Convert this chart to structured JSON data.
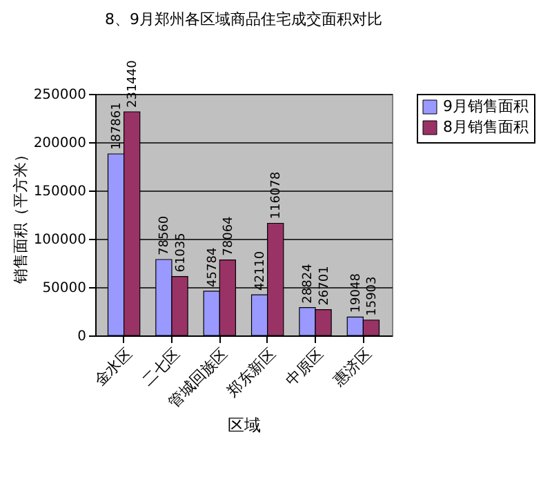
{
  "chart_data": {
    "type": "bar",
    "title": "8、9月郑州各区域商品住宅成交面积对比",
    "xlabel": "区域",
    "ylabel": "销售面积（平方米）",
    "categories": [
      "金水区",
      "二七区",
      "管城回族区",
      "郑东新区",
      "中原区",
      "惠济区"
    ],
    "series": [
      {
        "name": "9月销售面积",
        "color": "#9999ff",
        "values": [
          187861,
          78560,
          45784,
          42110,
          28824,
          19048
        ]
      },
      {
        "name": "8月销售面积",
        "color": "#993366",
        "values": [
          231440,
          61035,
          78064,
          116078,
          26701,
          15903
        ]
      }
    ],
    "ylim": [
      0,
      250000
    ],
    "yticks": [
      0,
      50000,
      100000,
      150000,
      200000,
      250000
    ],
    "grid": "y",
    "legend": "right",
    "data_labels": true
  }
}
